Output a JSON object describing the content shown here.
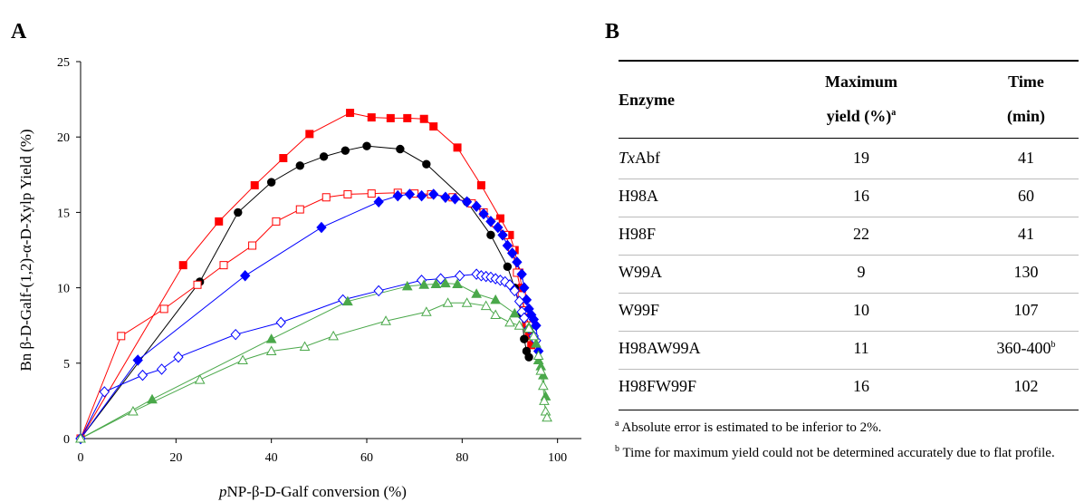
{
  "panel_a_label": "A",
  "panel_b_label": "B",
  "chart_data": {
    "type": "line",
    "xlabel_parts": {
      "italic_prefix": "p",
      "rest": "NP-β-D-Galf conversion (%)"
    },
    "ylabel": "Bn β-D-Galf-(1,2)-α-D-Xylp Yield (%)",
    "xlim": [
      0,
      105
    ],
    "ylim": [
      0,
      25
    ],
    "xticks": [
      0,
      20,
      40,
      60,
      80,
      100
    ],
    "yticks": [
      0,
      5,
      10,
      15,
      20,
      25
    ],
    "grid": false,
    "series": [
      {
        "color": "#ff0000",
        "marker": "square-filled",
        "points": [
          [
            0,
            0
          ],
          [
            21.5,
            11.5
          ],
          [
            29,
            14.4
          ],
          [
            36.5,
            16.8
          ],
          [
            42.5,
            18.6
          ],
          [
            48,
            20.2
          ],
          [
            56.5,
            21.6
          ],
          [
            61,
            21.3
          ],
          [
            65,
            21.25
          ],
          [
            68.5,
            21.25
          ],
          [
            72,
            21.2
          ],
          [
            74,
            20.7
          ],
          [
            79,
            19.3
          ],
          [
            84,
            16.8
          ],
          [
            88,
            14.6
          ],
          [
            90,
            13.5
          ],
          [
            91,
            12.5
          ],
          [
            92,
            11
          ],
          [
            92.5,
            10
          ],
          [
            93,
            8.5
          ],
          [
            93.5,
            7.5
          ],
          [
            94,
            6.8
          ],
          [
            94.5,
            6.2
          ]
        ]
      },
      {
        "color": "#000000",
        "marker": "circle-filled",
        "points": [
          [
            0,
            0
          ],
          [
            25,
            10.4
          ],
          [
            33,
            15
          ],
          [
            40,
            17
          ],
          [
            46,
            18.1
          ],
          [
            51,
            18.7
          ],
          [
            55.5,
            19.1
          ],
          [
            60,
            19.4
          ],
          [
            67,
            19.2
          ],
          [
            72.5,
            18.2
          ],
          [
            81,
            15.7
          ],
          [
            86,
            13.5
          ],
          [
            89.5,
            11.4
          ],
          [
            91,
            10
          ],
          [
            92.5,
            8.2
          ],
          [
            93,
            6.6
          ],
          [
            93.5,
            5.8
          ],
          [
            94,
            5.4
          ]
        ]
      },
      {
        "color": "#ff0000",
        "marker": "square-open",
        "points": [
          [
            0,
            0
          ],
          [
            8.5,
            6.8
          ],
          [
            17.5,
            8.6
          ],
          [
            24.5,
            10.2
          ],
          [
            30,
            11.5
          ],
          [
            36,
            12.8
          ],
          [
            41,
            14.4
          ],
          [
            46,
            15.2
          ],
          [
            51.5,
            16.0
          ],
          [
            56,
            16.2
          ],
          [
            61,
            16.25
          ],
          [
            66.5,
            16.3
          ],
          [
            70,
            16.25
          ],
          [
            73.5,
            16.2
          ],
          [
            78,
            16.0
          ],
          [
            82,
            15.6
          ],
          [
            84.5,
            15.0
          ],
          [
            87,
            14.3
          ],
          [
            89,
            13.5
          ],
          [
            90.5,
            12.5
          ],
          [
            91.5,
            11.0
          ],
          [
            92.5,
            9.5
          ],
          [
            93,
            8.5
          ],
          [
            94,
            7.5
          ]
        ]
      },
      {
        "color": "#0000ff",
        "marker": "diamond-filled",
        "points": [
          [
            0,
            0
          ],
          [
            12,
            5.2
          ],
          [
            34.5,
            10.8
          ],
          [
            50.5,
            14.0
          ],
          [
            62.5,
            15.7
          ],
          [
            66.5,
            16.1
          ],
          [
            69,
            16.2
          ],
          [
            71.5,
            16.1
          ],
          [
            74,
            16.2
          ],
          [
            76.5,
            16.0
          ],
          [
            78.5,
            15.9
          ],
          [
            81,
            15.7
          ],
          [
            83,
            15.4
          ],
          [
            84.5,
            14.9
          ],
          [
            86,
            14.4
          ],
          [
            87.5,
            14.0
          ],
          [
            88.5,
            13.5
          ],
          [
            89.5,
            12.8
          ],
          [
            90.5,
            12.3
          ],
          [
            91.5,
            11.7
          ],
          [
            92.5,
            10.9
          ],
          [
            93,
            10.0
          ],
          [
            93.5,
            9.2
          ],
          [
            94,
            8.6
          ],
          [
            94.5,
            8.2
          ],
          [
            95,
            7.9
          ],
          [
            95.5,
            7.5
          ],
          [
            96,
            5.8
          ]
        ]
      },
      {
        "color": "#0000ff",
        "marker": "diamond-open",
        "points": [
          [
            0,
            0
          ],
          [
            5,
            3.1
          ],
          [
            13,
            4.2
          ],
          [
            17,
            4.6
          ],
          [
            20.5,
            5.4
          ],
          [
            32.5,
            6.9
          ],
          [
            42,
            7.7
          ],
          [
            55,
            9.2
          ],
          [
            62.5,
            9.8
          ],
          [
            71.5,
            10.5
          ],
          [
            75.5,
            10.6
          ],
          [
            79.5,
            10.8
          ],
          [
            83,
            10.9
          ],
          [
            84,
            10.8
          ],
          [
            85,
            10.75
          ],
          [
            86,
            10.7
          ],
          [
            87,
            10.6
          ],
          [
            88,
            10.5
          ],
          [
            89,
            10.4
          ],
          [
            90,
            10.2
          ],
          [
            91,
            9.8
          ],
          [
            92,
            9.1
          ],
          [
            92.5,
            8.4
          ],
          [
            93,
            8.0
          ],
          [
            94,
            7.3
          ],
          [
            95,
            6.8
          ],
          [
            95.5,
            6.5
          ]
        ]
      },
      {
        "color": "#4aa84a",
        "marker": "triangle-filled",
        "points": [
          [
            0,
            0
          ],
          [
            15,
            2.6
          ],
          [
            40,
            6.6
          ],
          [
            56,
            9.1
          ],
          [
            68.5,
            10.1
          ],
          [
            72,
            10.2
          ],
          [
            74.5,
            10.25
          ],
          [
            76.5,
            10.3
          ],
          [
            79,
            10.25
          ],
          [
            83,
            9.6
          ],
          [
            87,
            9.2
          ],
          [
            91,
            8.3
          ],
          [
            94,
            7.4
          ],
          [
            95.5,
            6.3
          ],
          [
            96,
            5.2
          ],
          [
            96.5,
            4.8
          ],
          [
            97,
            4.2
          ],
          [
            97.5,
            2.8
          ]
        ]
      },
      {
        "color": "#4aa84a",
        "marker": "triangle-open",
        "points": [
          [
            0,
            0
          ],
          [
            11,
            1.8
          ],
          [
            25,
            3.9
          ],
          [
            34,
            5.2
          ],
          [
            40,
            5.8
          ],
          [
            47,
            6.1
          ],
          [
            53,
            6.8
          ],
          [
            64,
            7.8
          ],
          [
            72.5,
            8.4
          ],
          [
            77,
            9.0
          ],
          [
            81,
            9.0
          ],
          [
            85,
            8.8
          ],
          [
            87,
            8.2
          ],
          [
            90,
            7.7
          ],
          [
            92,
            7.5
          ],
          [
            94,
            7.3
          ],
          [
            95,
            6.8
          ],
          [
            96,
            5.5
          ],
          [
            96.5,
            4.5
          ],
          [
            97,
            3.5
          ],
          [
            97.2,
            2.5
          ],
          [
            97.5,
            1.8
          ],
          [
            97.8,
            1.4
          ]
        ]
      }
    ]
  },
  "table": {
    "headers": {
      "enzyme": "Enzyme",
      "max_yield_line1": "Maximum",
      "max_yield_line2": "yield (%)",
      "max_yield_sup": "a",
      "time_line1": "Time",
      "time_line2": "(min)"
    },
    "rows": [
      {
        "enzyme_italic": "Tx",
        "enzyme": "Abf",
        "yield": "19",
        "time": "41",
        "time_sup": ""
      },
      {
        "enzyme_italic": "",
        "enzyme": "H98A",
        "yield": "16",
        "time": "60",
        "time_sup": ""
      },
      {
        "enzyme_italic": "",
        "enzyme": "H98F",
        "yield": "22",
        "time": "41",
        "time_sup": ""
      },
      {
        "enzyme_italic": "",
        "enzyme": "W99A",
        "yield": "9",
        "time": "130",
        "time_sup": ""
      },
      {
        "enzyme_italic": "",
        "enzyme": "W99F",
        "yield": "10",
        "time": "107",
        "time_sup": ""
      },
      {
        "enzyme_italic": "",
        "enzyme": "H98AW99A",
        "yield": "11",
        "time": "360-400",
        "time_sup": "b"
      },
      {
        "enzyme_italic": "",
        "enzyme": "H98FW99F",
        "yield": "16",
        "time": "102",
        "time_sup": ""
      }
    ],
    "footnotes": [
      {
        "mark": "a",
        "text": " Absolute error is estimated to be inferior to 2%."
      },
      {
        "mark": "b",
        "text": " Time for maximum yield could not be determined accurately due to flat profile."
      }
    ]
  }
}
